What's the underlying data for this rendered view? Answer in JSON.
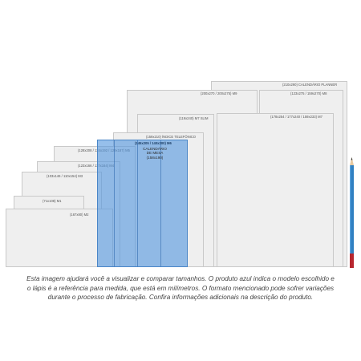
{
  "sizes": {
    "planner": "(210x290) CALENDÁRIO PLANNER",
    "m9": "(200x270 / 200x275) M9",
    "m8": "(123x275 / 159x270) M8",
    "m7": "(178x254 / 177x240 / 159x233) M7",
    "m7slim": "(119x240) M7 SLIM",
    "indice": "(159x210) ÍNDICE TELEFÔNICO",
    "m6": "(145x205 / 140x200) M6",
    "calendario": [
      "CALENDÁRIO",
      "DE MESA",
      "(158x190)"
    ],
    "m5": "(128x208 / 134x192 / 129x187) M5",
    "m4": "(123x166 / 117x164) M4",
    "m3": "(103x146 / 110x154) M3",
    "m1": "(71x108) M1",
    "m2": "(167x80) M2"
  },
  "caption": [
    "Esta imagem ajudará você a visualizar e comparar tamanhos. O produto azul indica o modelo escolhido e",
    "o lápis é a referência para medida, que está em milímetros. O formato mencionado pode sofrer variações",
    "durante o processo de fabricação. Confira informações adicionais na descrição do produto."
  ],
  "colors": {
    "selected_blue": "#5698de",
    "card_gray": "#efefef",
    "pencil_blue": "#2f7fc1",
    "pencil_red": "#b7262f"
  },
  "icons": {
    "pencil": "pencil-icon"
  }
}
